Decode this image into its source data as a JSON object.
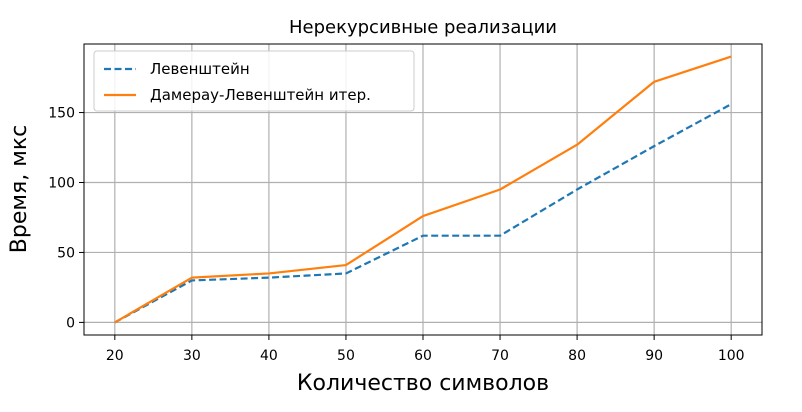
{
  "chart_data": {
    "type": "line",
    "title": "Нерекурсивные реализации",
    "xlabel": "Количество символов",
    "ylabel": "Время, мкс",
    "x": [
      20,
      30,
      40,
      50,
      60,
      70,
      80,
      90,
      100
    ],
    "xlim": [
      16,
      104
    ],
    "ylim": [
      -9,
      199
    ],
    "xticks": [
      20,
      30,
      40,
      50,
      60,
      70,
      80,
      90,
      100
    ],
    "yticks": [
      0,
      50,
      100,
      150
    ],
    "grid": true,
    "legend_position": "top-left",
    "series": [
      {
        "name": "Левенштейн",
        "style": "dashed",
        "color": "#1f77b4",
        "values": [
          0,
          30,
          32,
          35,
          62,
          62,
          95,
          126,
          156
        ]
      },
      {
        "name": "Дамерау-Левенштейн итер.",
        "style": "solid",
        "color": "#ff7f0e",
        "values": [
          0,
          32,
          35,
          41,
          76,
          95,
          127,
          172,
          190
        ]
      }
    ]
  }
}
